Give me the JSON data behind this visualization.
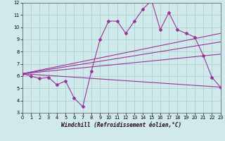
{
  "xlabel": "Windchill (Refroidissement éolien,°C)",
  "bg_color": "#d0eaec",
  "grid_color": "#a8cccc",
  "line_color": "#993399",
  "xlim": [
    0,
    23
  ],
  "ylim": [
    3,
    12
  ],
  "yticks": [
    3,
    4,
    5,
    6,
    7,
    8,
    9,
    10,
    11,
    12
  ],
  "xticks": [
    0,
    1,
    2,
    3,
    4,
    5,
    6,
    7,
    8,
    9,
    10,
    11,
    12,
    13,
    14,
    15,
    16,
    17,
    18,
    19,
    20,
    21,
    22,
    23
  ],
  "series1_x": [
    0,
    1,
    2,
    3,
    4,
    5,
    6,
    7,
    8,
    9,
    10,
    11,
    12,
    13,
    14,
    15,
    16,
    17,
    18,
    19,
    20,
    21,
    22,
    23
  ],
  "series1_y": [
    6.2,
    6.0,
    5.8,
    5.9,
    5.3,
    5.6,
    4.2,
    3.5,
    6.4,
    9.0,
    10.5,
    10.5,
    9.5,
    10.5,
    11.5,
    12.2,
    9.8,
    11.2,
    9.8,
    9.5,
    9.2,
    7.7,
    5.9,
    5.1
  ],
  "line1_x": [
    0,
    23
  ],
  "line1_y": [
    6.2,
    9.5
  ],
  "line2_x": [
    0,
    23
  ],
  "line2_y": [
    6.2,
    8.8
  ],
  "line3_x": [
    0,
    23
  ],
  "line3_y": [
    6.2,
    7.8
  ],
  "line4_x": [
    0,
    23
  ],
  "line4_y": [
    6.2,
    5.1
  ]
}
